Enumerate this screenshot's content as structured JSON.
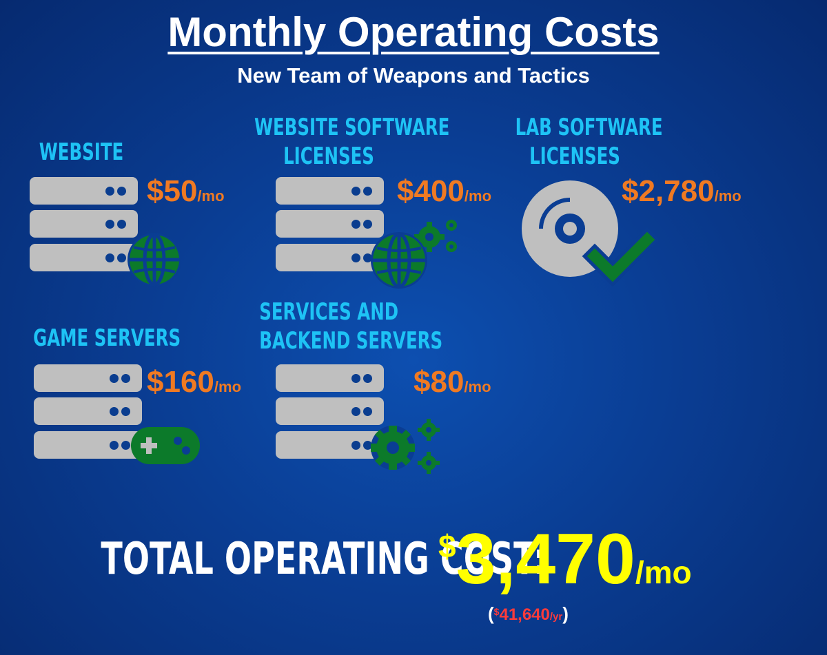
{
  "header": {
    "title": "Monthly Operating Costs",
    "subtitle": "New Team of Weapons and Tactics"
  },
  "items": [
    {
      "label_lines": [
        "WEBSITE"
      ],
      "amount": "$50",
      "unit": "/mo",
      "icon": "globe-icon"
    },
    {
      "label_lines": [
        "WEBSITE SOFTWARE",
        "LICENSES"
      ],
      "amount": "$400",
      "unit": "/mo",
      "icon": "globe-gears-icon"
    },
    {
      "label_lines": [
        "LAB SOFTWARE",
        "LICENSES"
      ],
      "amount": "$2,780",
      "unit": "/mo",
      "icon": "disc-check-icon"
    },
    {
      "label_lines": [
        "GAME SERVERS"
      ],
      "amount": "$160",
      "unit": "/mo",
      "icon": "gamepad-icon"
    },
    {
      "label_lines": [
        "SERVICES AND",
        "BACKEND SERVERS"
      ],
      "amount": "$80",
      "unit": "/mo",
      "icon": "gears-icon"
    }
  ],
  "total": {
    "label": "TOTAL OPERATING COST:",
    "currency": "$",
    "amount": "3,470",
    "unit": "/mo",
    "yearly_open": "(",
    "yearly_currency": "$",
    "yearly_amount": "41,640",
    "yearly_unit": "/yr",
    "yearly_close": ")"
  },
  "colors": {
    "background": "#0a3d93",
    "label": "#1ec3f5",
    "price": "#f07a22",
    "total": "#ffff00",
    "yearly": "#ff3b3b",
    "server": "#bfbfbf",
    "icon": "#0c7a2a"
  }
}
